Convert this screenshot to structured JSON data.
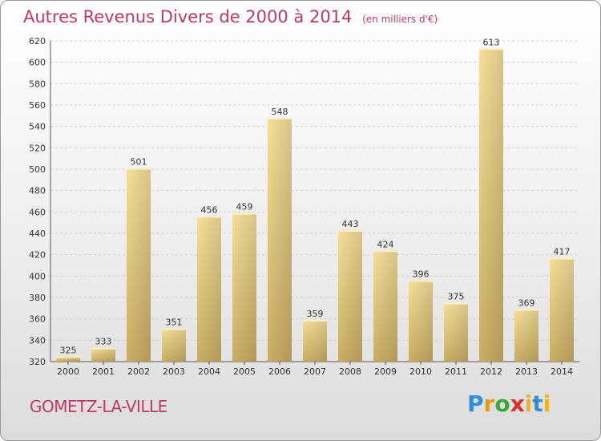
{
  "chart_data": {
    "type": "bar",
    "title": "Autres Revenus Divers de 2000 à 2014",
    "subtitle": "(en milliers d'€)",
    "categories": [
      "2000",
      "2001",
      "2002",
      "2003",
      "2004",
      "2005",
      "2006",
      "2007",
      "2008",
      "2009",
      "2010",
      "2011",
      "2012",
      "2013",
      "2014"
    ],
    "values": [
      325,
      333,
      501,
      351,
      456,
      459,
      548,
      359,
      443,
      424,
      396,
      375,
      613,
      369,
      417
    ],
    "ylim": [
      320,
      620
    ],
    "yticks": [
      320,
      340,
      360,
      380,
      400,
      420,
      440,
      460,
      480,
      500,
      520,
      540,
      560,
      580,
      600,
      620
    ],
    "grid": true,
    "bar_color": "#e6c87a",
    "xlabel": "",
    "ylabel": ""
  },
  "footer": {
    "town": "GOMETZ-LA-VILLE",
    "logo_parts": [
      "P",
      "r",
      "o",
      "x",
      "i",
      "t",
      "i"
    ]
  }
}
